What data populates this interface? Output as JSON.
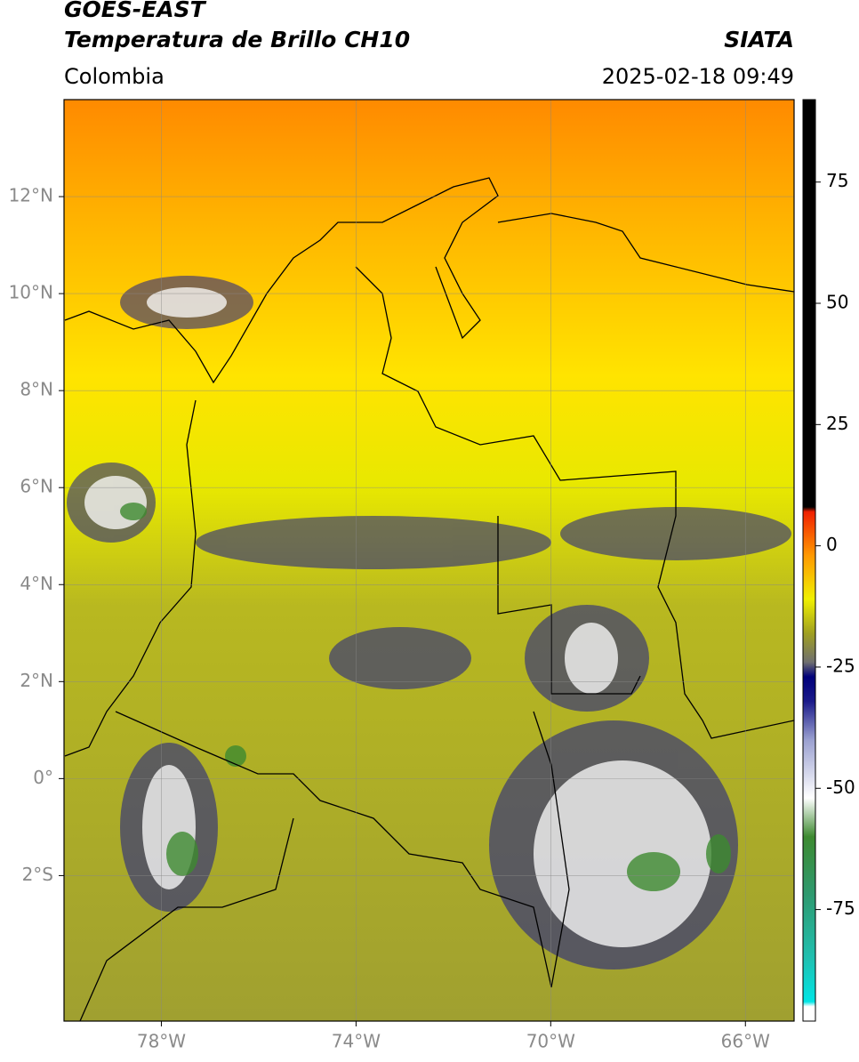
{
  "header": {
    "title": "GOES-EAST",
    "subtitle": "Temperatura de Brillo CH10",
    "source": "SIATA",
    "region": "Colombia",
    "datetime": "2025-02-18 09:49"
  },
  "map": {
    "xlim": [
      -80,
      -65
    ],
    "ylim": [
      -5,
      14
    ],
    "grid": true,
    "xticks": [
      {
        "value": -78,
        "label": "78°W"
      },
      {
        "value": -74,
        "label": "74°W"
      },
      {
        "value": -70,
        "label": "70°W"
      },
      {
        "value": -66,
        "label": "66°W"
      }
    ],
    "yticks": [
      {
        "value": 12,
        "label": "12°N"
      },
      {
        "value": 10,
        "label": "10°N"
      },
      {
        "value": 8,
        "label": "8°N"
      },
      {
        "value": 6,
        "label": "6°N"
      },
      {
        "value": 4,
        "label": "4°N"
      },
      {
        "value": 2,
        "label": "2°N"
      },
      {
        "value": 0,
        "label": "0°"
      },
      {
        "value": -2,
        "label": "2°S"
      }
    ]
  },
  "colorbar": {
    "clim": [
      -98,
      92
    ],
    "ticks": [
      75,
      50,
      25,
      0,
      -25,
      -50,
      -75
    ],
    "colormap": [
      {
        "value": -98,
        "color": "#ffffff"
      },
      {
        "value": -95,
        "color": "#ffffff"
      },
      {
        "value": -94,
        "color": "#00e5e5"
      },
      {
        "value": -85,
        "color": "#20c0b0"
      },
      {
        "value": -72,
        "color": "#2e9a70"
      },
      {
        "value": -60,
        "color": "#3d8a30"
      },
      {
        "value": -52,
        "color": "#ffffff"
      },
      {
        "value": -40,
        "color": "#9aa0d0"
      },
      {
        "value": -32,
        "color": "#1a1a8a"
      },
      {
        "value": -27,
        "color": "#00007a"
      },
      {
        "value": -24,
        "color": "#707070"
      },
      {
        "value": -18,
        "color": "#a0a020"
      },
      {
        "value": -11,
        "color": "#f0f000"
      },
      {
        "value": -2,
        "color": "#ff9900"
      },
      {
        "value": 7,
        "color": "#f02000"
      },
      {
        "value": 8,
        "color": "#000000"
      },
      {
        "value": 92,
        "color": "#000000"
      }
    ]
  }
}
